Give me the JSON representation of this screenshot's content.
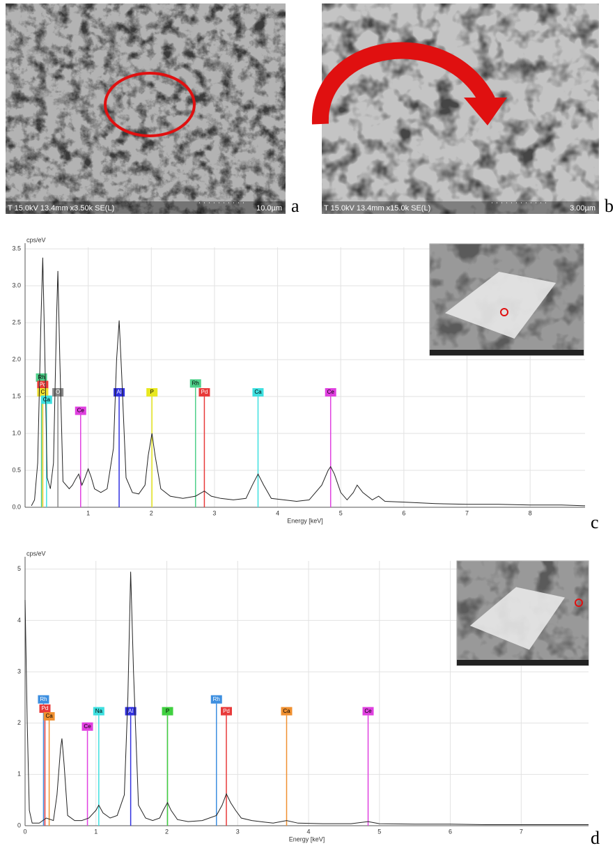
{
  "panels": [
    {
      "label": "a",
      "info": "T 15.0kV 13.4mm x3.50k SE(L)",
      "scale": "10.0µm"
    },
    {
      "label": "b",
      "info": "T 15.0kV 13.4mm x15.0k SE(L)",
      "scale": "3.00µm"
    }
  ],
  "chart_data": [
    {
      "type": "line",
      "panel_label": "c",
      "y_label": "cps/eV",
      "x_label": "Energy [keV]",
      "color": "#222222",
      "xlim": [
        0,
        8.87
      ],
      "ylim": [
        0,
        3.52
      ],
      "xticks": [
        1,
        2,
        3,
        4,
        5,
        6,
        7,
        8
      ],
      "yticks": [
        {
          "value": 0,
          "label": "0.0"
        },
        0.5,
        {
          "value": 1,
          "label": "1.0"
        },
        1.5,
        {
          "value": 2,
          "label": "2.0"
        },
        2.5,
        {
          "value": 3,
          "label": "3.0"
        },
        3.5
      ],
      "grid": true,
      "x": [
        0.1,
        0.15,
        0.2,
        0.25,
        0.28,
        0.31,
        0.35,
        0.4,
        0.45,
        0.5,
        0.52,
        0.55,
        0.6,
        0.65,
        0.7,
        0.75,
        0.8,
        0.85,
        0.9,
        0.95,
        1.0,
        1.05,
        1.1,
        1.2,
        1.3,
        1.4,
        1.45,
        1.49,
        1.53,
        1.6,
        1.7,
        1.8,
        1.9,
        1.95,
        2.01,
        2.06,
        2.15,
        2.3,
        2.5,
        2.7,
        2.84,
        2.95,
        3.1,
        3.3,
        3.5,
        3.6,
        3.69,
        3.78,
        3.9,
        4.1,
        4.3,
        4.5,
        4.7,
        4.8,
        4.84,
        4.9,
        5.0,
        5.1,
        5.2,
        5.26,
        5.35,
        5.5,
        5.6,
        5.7,
        6.0,
        6.5,
        7.0,
        7.5,
        8.0,
        8.5,
        8.87
      ],
      "values": [
        0.02,
        0.1,
        0.6,
        2.5,
        3.38,
        2.2,
        0.4,
        0.25,
        0.6,
        2.6,
        3.2,
        2.0,
        0.35,
        0.3,
        0.25,
        0.3,
        0.38,
        0.45,
        0.3,
        0.4,
        0.52,
        0.4,
        0.25,
        0.2,
        0.25,
        0.8,
        2.0,
        2.53,
        1.8,
        0.4,
        0.2,
        0.18,
        0.3,
        0.7,
        1.0,
        0.7,
        0.25,
        0.15,
        0.12,
        0.15,
        0.22,
        0.15,
        0.12,
        0.1,
        0.12,
        0.3,
        0.45,
        0.3,
        0.12,
        0.1,
        0.08,
        0.1,
        0.3,
        0.5,
        0.55,
        0.45,
        0.2,
        0.1,
        0.2,
        0.3,
        0.2,
        0.1,
        0.15,
        0.08,
        0.07,
        0.05,
        0.04,
        0.04,
        0.03,
        0.03,
        0.02
      ],
      "markers": [
        {
          "label": "Rh",
          "color": "#4fd08a",
          "energy": 0.26,
          "height": 1.7
        },
        {
          "label": "Pd",
          "color": "#e83a3a",
          "energy": 0.28,
          "height": 1.6
        },
        {
          "label": "C",
          "color": "#f0e030",
          "energy": 0.28,
          "height": 1.5
        },
        {
          "label": "Ca",
          "color": "#3ee0e0",
          "energy": 0.34,
          "height": 1.4
        },
        {
          "label": "O",
          "color": "#888888",
          "energy": 0.52,
          "height": 1.5
        },
        {
          "label": "Ce",
          "color": "#e040e0",
          "energy": 0.88,
          "height": 1.25
        },
        {
          "label": "Al",
          "color": "#3030e0",
          "energy": 1.49,
          "height": 1.5
        },
        {
          "label": "P",
          "color": "#e8e820",
          "energy": 2.01,
          "height": 1.5
        },
        {
          "label": "Rh",
          "color": "#4fd08a",
          "energy": 2.7,
          "height": 1.62
        },
        {
          "label": "Pd",
          "color": "#e83a3a",
          "energy": 2.84,
          "height": 1.5
        },
        {
          "label": "Ca",
          "color": "#3ee0e0",
          "energy": 3.69,
          "height": 1.5
        },
        {
          "label": "Ce",
          "color": "#e040e0",
          "energy": 4.84,
          "height": 1.5
        }
      ]
    },
    {
      "type": "line",
      "panel_label": "d",
      "y_label": "cps/eV",
      "x_label": "Energy [keV]",
      "color": "#222222",
      "xlim": [
        0,
        7.95
      ],
      "ylim": [
        0,
        5.16
      ],
      "xticks": [
        0,
        1,
        2,
        3,
        4,
        5,
        6,
        7
      ],
      "yticks": [
        0,
        1,
        2,
        3,
        4,
        5
      ],
      "grid": true,
      "x": [
        0,
        0.03,
        0.06,
        0.1,
        0.15,
        0.2,
        0.25,
        0.3,
        0.4,
        0.45,
        0.5,
        0.52,
        0.55,
        0.6,
        0.7,
        0.8,
        0.9,
        1.0,
        1.04,
        1.1,
        1.2,
        1.3,
        1.4,
        1.45,
        1.49,
        1.53,
        1.6,
        1.7,
        1.8,
        1.9,
        1.95,
        2.01,
        2.06,
        2.15,
        2.3,
        2.5,
        2.7,
        2.78,
        2.84,
        2.9,
        2.97,
        3.05,
        3.2,
        3.5,
        3.69,
        3.85,
        4.2,
        4.6,
        4.84,
        5.0,
        5.5,
        6.0,
        6.5,
        7.0,
        7.5,
        7.95
      ],
      "values": [
        4.4,
        2.0,
        0.3,
        0.05,
        0.05,
        0.05,
        0.1,
        0.15,
        0.1,
        0.6,
        1.5,
        1.7,
        1.2,
        0.2,
        0.1,
        0.1,
        0.15,
        0.3,
        0.4,
        0.25,
        0.15,
        0.2,
        0.6,
        2.5,
        4.95,
        3.0,
        0.4,
        0.15,
        0.1,
        0.15,
        0.3,
        0.45,
        0.3,
        0.12,
        0.08,
        0.1,
        0.2,
        0.4,
        0.62,
        0.45,
        0.3,
        0.15,
        0.1,
        0.05,
        0.1,
        0.05,
        0.04,
        0.04,
        0.08,
        0.04,
        0.03,
        0.03,
        0.02,
        0.02,
        0.02,
        0.02
      ],
      "markers": [
        {
          "label": "Rh",
          "color": "#3d8fe0",
          "energy": 0.26,
          "height": 2.38
        },
        {
          "label": "Pd",
          "color": "#e83a3a",
          "energy": 0.28,
          "height": 2.2
        },
        {
          "label": "Ca",
          "color": "#f09030",
          "energy": 0.34,
          "height": 2.05
        },
        {
          "label": "Ce",
          "color": "#e040e0",
          "energy": 0.88,
          "height": 1.85
        },
        {
          "label": "Na",
          "color": "#3ee0e0",
          "energy": 1.04,
          "height": 2.15
        },
        {
          "label": "Al",
          "color": "#3030e0",
          "energy": 1.49,
          "height": 2.15
        },
        {
          "label": "P",
          "color": "#40d040",
          "energy": 2.01,
          "height": 2.15
        },
        {
          "label": "Rh",
          "color": "#3d8fe0",
          "energy": 2.7,
          "height": 2.38
        },
        {
          "label": "Pd",
          "color": "#e83a3a",
          "energy": 2.84,
          "height": 2.15
        },
        {
          "label": "Ca",
          "color": "#f09030",
          "energy": 3.69,
          "height": 2.15
        },
        {
          "label": "Ce",
          "color": "#e040e0",
          "energy": 4.84,
          "height": 2.15
        }
      ]
    }
  ]
}
